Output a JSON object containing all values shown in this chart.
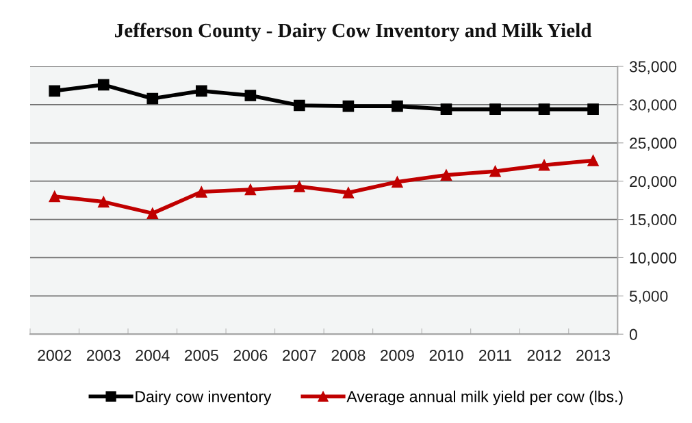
{
  "chart_data": {
    "type": "line",
    "title": "Jefferson County - Dairy Cow Inventory and Milk Yield",
    "categories": [
      "2002",
      "2003",
      "2004",
      "2005",
      "2006",
      "2007",
      "2008",
      "2009",
      "2010",
      "2011",
      "2012",
      "2013"
    ],
    "series": [
      {
        "name": "Dairy cow inventory",
        "color": "#000000",
        "marker": "square",
        "values": [
          31800,
          32600,
          30800,
          31800,
          31200,
          29900,
          29800,
          29800,
          29400,
          29400,
          29400,
          29400
        ]
      },
      {
        "name": "Average annual milk yield per cow (lbs.)",
        "color": "#c00000",
        "marker": "triangle",
        "values": [
          18000,
          17300,
          15800,
          18600,
          18900,
          19300,
          18500,
          19900,
          20800,
          21300,
          22100,
          22700
        ]
      }
    ],
    "ylim": [
      0,
      35000
    ],
    "yticks": [
      {
        "value": 0,
        "label": "0"
      },
      {
        "value": 5000,
        "label": "5,000"
      },
      {
        "value": 10000,
        "label": "10,000"
      },
      {
        "value": 15000,
        "label": "15,000"
      },
      {
        "value": 20000,
        "label": "20,000"
      },
      {
        "value": 25000,
        "label": "25,000"
      },
      {
        "value": 30000,
        "label": "30,000"
      },
      {
        "value": 35000,
        "label": "35,000"
      }
    ],
    "grid": "y",
    "legend": "bottom"
  }
}
